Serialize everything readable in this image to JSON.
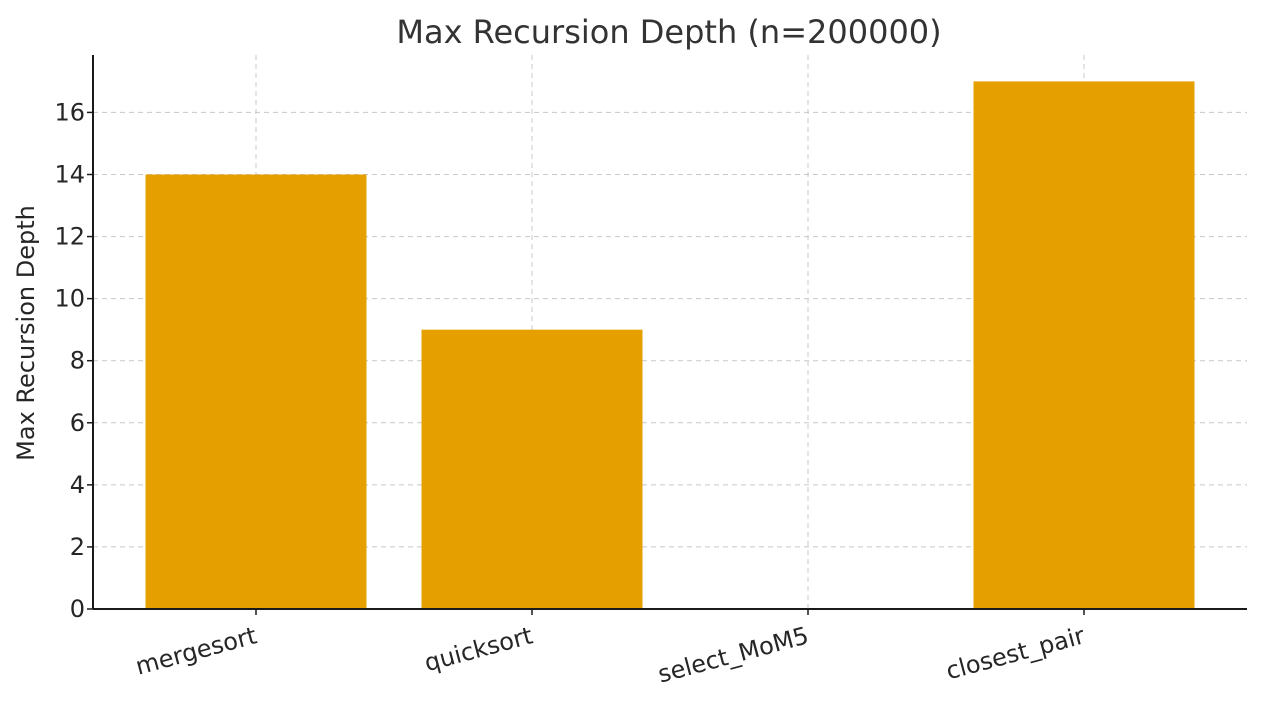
{
  "chart_data": {
    "type": "bar",
    "title": "Max Recursion Depth (n=200000)",
    "xlabel": "",
    "ylabel": "Max Recursion Depth",
    "categories": [
      "mergesort",
      "quicksort",
      "select_MoM5",
      "closest_pair"
    ],
    "values": [
      14,
      9,
      0,
      17
    ],
    "ylim": [
      0,
      17.85
    ],
    "yticks": [
      0,
      2,
      4,
      6,
      8,
      10,
      12,
      14,
      16
    ],
    "grid": true,
    "bar_color": "#e5a000"
  }
}
